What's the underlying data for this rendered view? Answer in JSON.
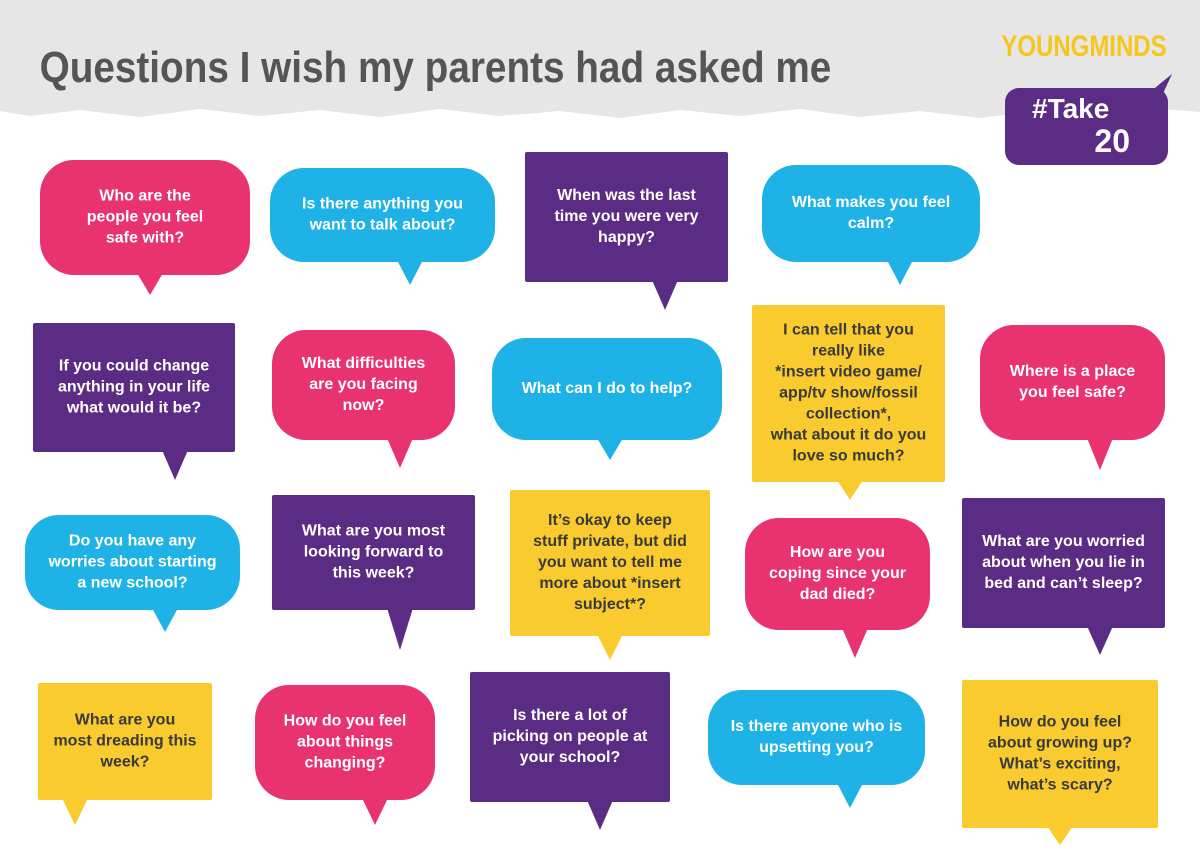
{
  "header": {
    "title": "Questions I wish my parents had asked me",
    "logo": "YOUNGMINDS",
    "tag": [
      "#Take",
      "20"
    ]
  },
  "bubbles": [
    {
      "lines": [
        "Who are the",
        "people you feel",
        "safe with?"
      ]
    },
    {
      "lines": [
        "Is there anything you",
        "want to talk about?"
      ]
    },
    {
      "lines": [
        "When was the last",
        "time you were very",
        "happy?"
      ]
    },
    {
      "lines": [
        "What makes you feel",
        "calm?"
      ]
    },
    {
      "lines": [
        "If you could change",
        "anything in your life",
        "what would it be?"
      ]
    },
    {
      "lines": [
        "What difficulties",
        "are you facing",
        "now?"
      ]
    },
    {
      "lines": [
        "What can I do to help?"
      ]
    },
    {
      "lines": [
        "I can tell that you",
        "really like",
        "*insert video game/",
        "app/tv show/fossil",
        "collection*,",
        "what about it do you",
        "love so much?"
      ]
    },
    {
      "lines": [
        "Where is a place",
        "you feel safe?"
      ]
    },
    {
      "lines": [
        "Do you have any",
        "worries about starting",
        "a new school?"
      ]
    },
    {
      "lines": [
        "What are you most",
        "looking forward to",
        "this week?"
      ]
    },
    {
      "lines": [
        "It’s okay to keep",
        "stuff private, but did",
        "you want to tell me",
        "more about *insert",
        "subject*?"
      ]
    },
    {
      "lines": [
        "How are you",
        "coping since your",
        "dad died?"
      ]
    },
    {
      "lines": [
        "What are you worried",
        "about when you lie in",
        "bed and can’t sleep?"
      ]
    },
    {
      "lines": [
        "What are you",
        "most dreading this",
        "week?"
      ]
    },
    {
      "lines": [
        "How do you feel",
        "about things",
        "changing?"
      ]
    },
    {
      "lines": [
        "Is there a lot of",
        "picking on people at",
        "your school?"
      ]
    },
    {
      "lines": [
        "Is there anyone who is",
        "upsetting you?"
      ]
    },
    {
      "lines": [
        "How do you feel",
        "about growing up?",
        "What’s exciting,",
        "what’s scary?"
      ]
    }
  ]
}
